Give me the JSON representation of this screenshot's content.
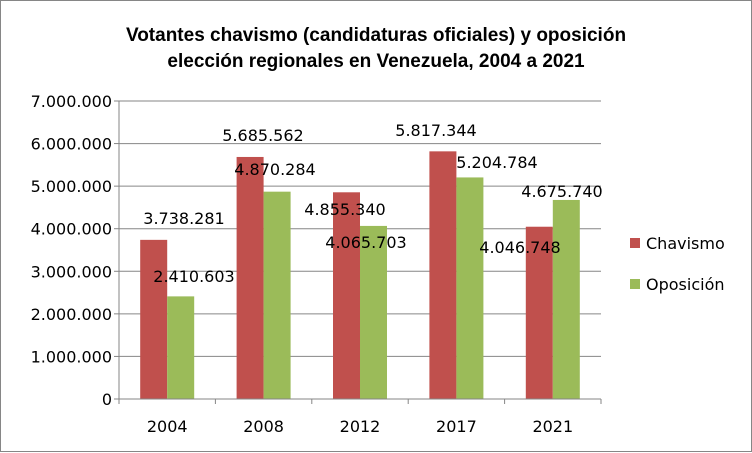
{
  "chart_data": {
    "type": "bar",
    "title_line1": "Votantes chavismo (candidaturas oficiales) y oposición",
    "title_line2": "elección regionales en Venezuela, 2004 a 2021",
    "categories": [
      "2004",
      "2008",
      "2012",
      "2017",
      "2021"
    ],
    "series": [
      {
        "name": "Chavismo",
        "color": "#C0504D",
        "values": [
          3738281,
          5685562,
          4855340,
          5817344,
          4046748
        ],
        "labels": [
          "3.738.281",
          "5.685.562",
          "4.855.340",
          "5.817.344",
          "4.046.748"
        ]
      },
      {
        "name": "Oposición",
        "color": "#9BBB59",
        "values": [
          2410603,
          4870284,
          4065703,
          5204784,
          4675740
        ],
        "labels": [
          "2.410.603",
          "4.870.284",
          "4.065.703",
          "5.204.784",
          "4.675.740"
        ]
      }
    ],
    "ylim": [
      0,
      7000000
    ],
    "yticks": [
      "0",
      "1.000.000",
      "2.000.000",
      "3.000.000",
      "4.000.000",
      "5.000.000",
      "6.000.000",
      "7.000.000"
    ],
    "grid": true,
    "legend_position": "right"
  }
}
